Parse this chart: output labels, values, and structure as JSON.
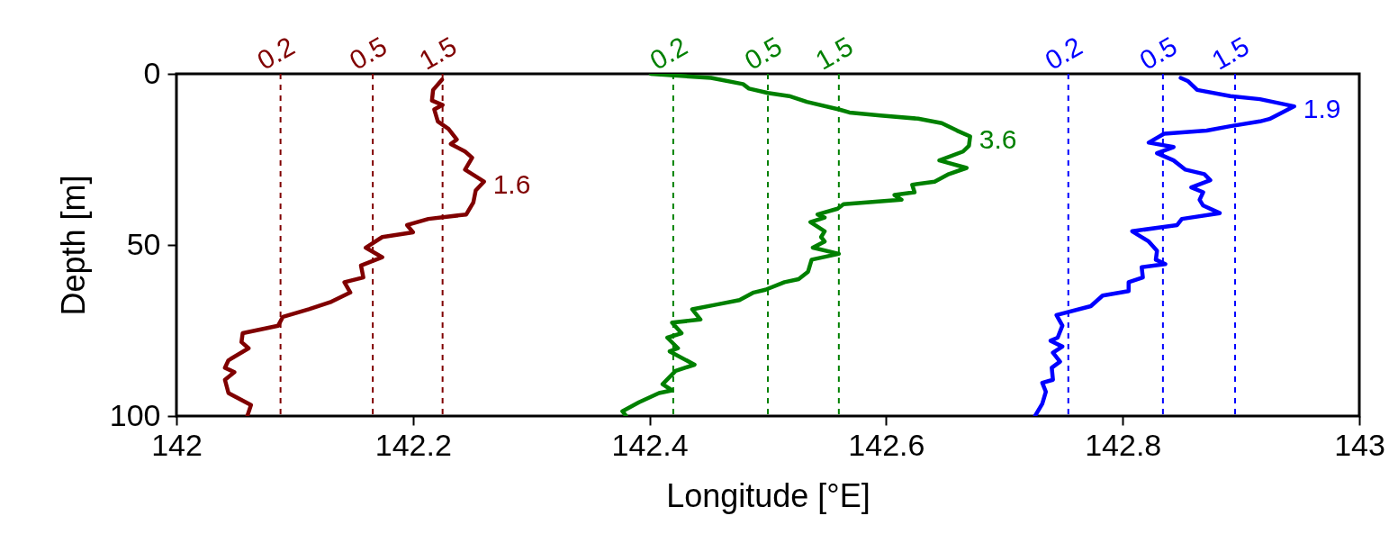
{
  "chart_data": {
    "type": "line",
    "xlabel": "Longitude [°E]",
    "ylabel": "Depth [m]",
    "xlim": [
      142,
      143
    ],
    "xticks": [
      142,
      142.2,
      142.4,
      142.6,
      142.8,
      143
    ],
    "ylim": [
      100,
      0
    ],
    "yticks": [
      0,
      50,
      100
    ],
    "grid": false,
    "line_style": "solid",
    "marker": "none",
    "series": [
      {
        "color": "#800000",
        "x": [
          142.2245,
          142.217,
          142.216,
          142.225,
          142.218,
          142.221,
          142.23,
          142.237,
          142.232,
          142.244,
          142.25,
          142.244,
          142.26,
          142.253,
          142.251,
          142.245,
          142.213,
          142.195,
          142.2,
          142.174,
          142.16,
          142.174,
          142.156,
          142.158,
          142.142,
          142.147,
          142.131,
          142.112,
          142.09,
          142.086,
          142.056,
          142.055,
          142.061,
          142.044,
          142.041,
          142.049,
          142.041,
          142.044,
          142.063,
          142.06
        ],
        "values": [
          1.7,
          4.7,
          7.8,
          9.1,
          10.4,
          13.9,
          16.1,
          19.2,
          20.5,
          22.7,
          24.5,
          28,
          31.5,
          34.1,
          37.6,
          41.1,
          42.4,
          44.2,
          46.3,
          47.7,
          50.8,
          53.6,
          56,
          59.5,
          60.9,
          63.9,
          66.6,
          68.8,
          71,
          73.6,
          75.8,
          78.4,
          80.2,
          83.7,
          85.9,
          87.2,
          89.4,
          93.3,
          96.8,
          99.9
        ]
      },
      {
        "color": "#008000",
        "x": [
          142.401,
          142.452,
          142.479,
          142.484,
          142.5,
          142.518,
          142.533,
          142.56,
          142.569,
          142.595,
          142.627,
          142.647,
          142.66,
          142.671,
          142.67,
          142.665,
          142.645,
          142.668,
          142.653,
          142.641,
          142.622,
          142.624,
          142.607,
          142.613,
          142.564,
          142.559,
          142.542,
          142.548,
          142.536,
          142.548,
          142.545,
          142.548,
          142.538,
          142.56,
          142.537,
          142.534,
          142.526,
          142.514,
          142.498,
          142.488,
          142.476,
          142.457,
          142.436,
          142.443,
          142.419,
          142.427,
          142.415,
          142.424,
          142.417,
          142.438,
          142.422,
          142.411,
          142.419,
          142.408,
          142.391,
          142.377,
          142.38
        ],
        "values": [
          0,
          1.2,
          3,
          4.3,
          5.6,
          6.5,
          8.2,
          10.4,
          11.3,
          12.2,
          13.1,
          14.4,
          16.6,
          18.3,
          21,
          22.7,
          25.3,
          27.5,
          29.3,
          31.5,
          32.4,
          34.6,
          35.4,
          36.8,
          38.1,
          39.4,
          41.1,
          42,
          43.3,
          46,
          47.7,
          49,
          50.8,
          52.6,
          54.3,
          57.8,
          60,
          60.9,
          63.1,
          63.9,
          66.1,
          67.4,
          68.8,
          71.8,
          72.7,
          75.8,
          77.1,
          80.2,
          81.1,
          85,
          86.8,
          90.7,
          92.5,
          93.3,
          96,
          98.6,
          99.9
        ]
      },
      {
        "color": "#0000ff",
        "x": [
          142.849,
          142.855,
          142.863,
          142.891,
          142.916,
          142.945,
          142.924,
          142.916,
          142.891,
          142.871,
          142.835,
          142.822,
          142.843,
          142.829,
          142.843,
          142.853,
          142.869,
          142.874,
          142.858,
          142.868,
          142.865,
          142.868,
          142.882,
          142.85,
          142.846,
          142.808,
          142.822,
          142.829,
          142.828,
          142.836,
          142.816,
          142.817,
          142.805,
          142.805,
          142.783,
          142.773,
          142.744,
          142.749,
          142.745,
          142.739,
          142.749,
          142.741,
          142.747,
          142.74,
          142.741,
          142.732,
          142.735,
          142.732,
          142.726
        ],
        "values": [
          1.2,
          2.1,
          4.7,
          6.5,
          7.4,
          9.5,
          13.2,
          13.9,
          15.3,
          16.6,
          17.5,
          20.1,
          21.4,
          23.2,
          25.3,
          28,
          29.3,
          31.1,
          33.2,
          34.6,
          36.8,
          38.5,
          40.7,
          42.4,
          44.2,
          46,
          49,
          51.7,
          54.3,
          55.6,
          56.5,
          59.5,
          60.9,
          63.5,
          64.8,
          67.9,
          70.5,
          73.6,
          77.1,
          78,
          79.7,
          81.5,
          84.1,
          85.9,
          89.4,
          90.3,
          92.9,
          96.4,
          99.9
        ]
      }
    ],
    "ref_lines": [
      {
        "axis": "x",
        "value": 142.088,
        "color": "#800000",
        "line_style": "dashed"
      },
      {
        "axis": "x",
        "value": 142.166,
        "color": "#800000",
        "line_style": "dashed"
      },
      {
        "axis": "x",
        "value": 142.225,
        "color": "#800000",
        "line_style": "dashed"
      },
      {
        "axis": "x",
        "value": 142.42,
        "color": "#008000",
        "line_style": "dashed"
      },
      {
        "axis": "x",
        "value": 142.5,
        "color": "#008000",
        "line_style": "dashed"
      },
      {
        "axis": "x",
        "value": 142.56,
        "color": "#008000",
        "line_style": "dashed"
      },
      {
        "axis": "x",
        "value": 142.754,
        "color": "#0000ff",
        "line_style": "dashed"
      },
      {
        "axis": "x",
        "value": 142.834,
        "color": "#0000ff",
        "line_style": "dashed"
      },
      {
        "axis": "x",
        "value": 142.895,
        "color": "#0000ff",
        "line_style": "dashed"
      }
    ],
    "annotations": [
      {
        "text": "0.2",
        "x": 142.088,
        "y": 0
      },
      {
        "text": "0.5",
        "x": 142.166,
        "y": 0
      },
      {
        "text": "1.5",
        "x": 142.225,
        "y": 0
      },
      {
        "text": "0.2",
        "x": 142.42,
        "y": 0
      },
      {
        "text": "0.5",
        "x": 142.5,
        "y": 0
      },
      {
        "text": "1.5",
        "x": 142.56,
        "y": 0
      },
      {
        "text": "0.2",
        "x": 142.754,
        "y": 0
      },
      {
        "text": "0.5",
        "x": 142.834,
        "y": 0
      },
      {
        "text": "1.5",
        "x": 142.895,
        "y": 0
      },
      {
        "text": "1.6",
        "x": 142.26,
        "y": 31.5
      },
      {
        "text": "3.6",
        "x": 142.671,
        "y": 18.3
      },
      {
        "text": "1.9",
        "x": 142.945,
        "y": 9.5
      }
    ]
  }
}
